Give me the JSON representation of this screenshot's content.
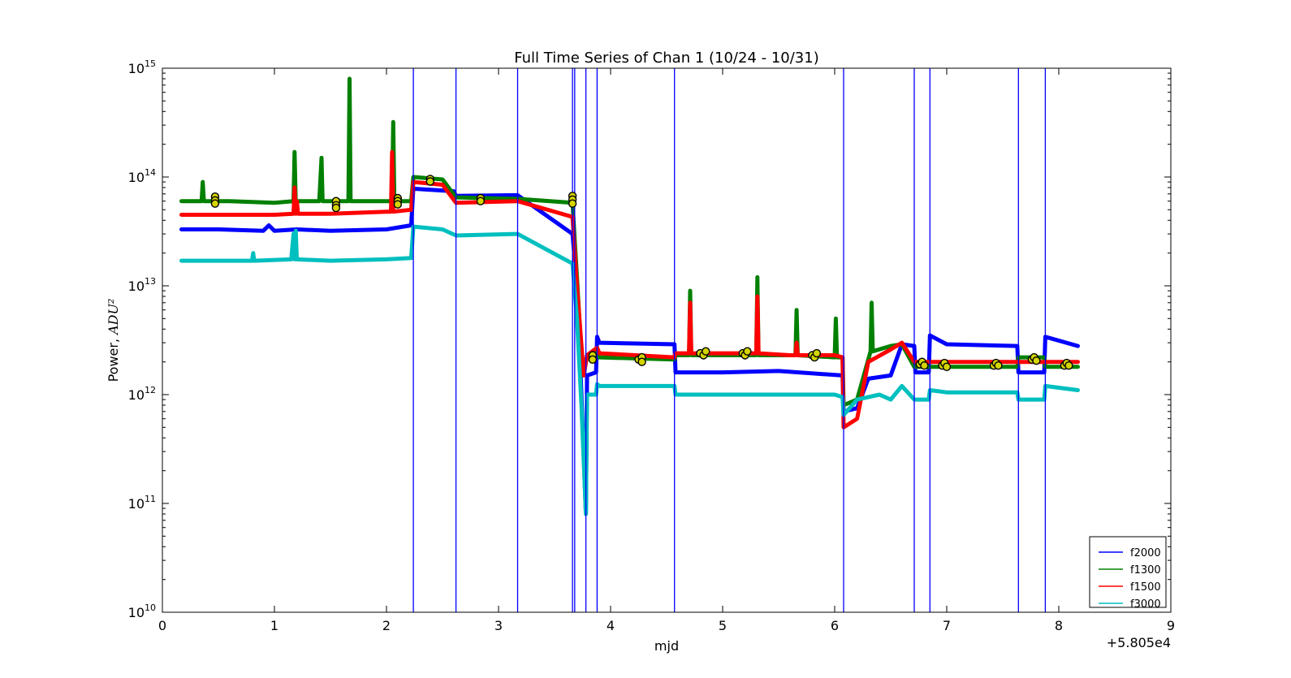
{
  "chart_data": {
    "type": "line",
    "title": "Full Time Series of Chan 1 (10/24 - 10/31)",
    "xlabel": "mjd",
    "ylabel_prefix": "Power, ",
    "ylabel_unit": "ADU²",
    "x_offset_label": "+5.805e4",
    "xlim": [
      0,
      9
    ],
    "yscale": "log",
    "ylim": [
      10000000000.0,
      1000000000000000.0
    ],
    "x_ticks": [
      0,
      1,
      2,
      3,
      4,
      5,
      6,
      7,
      8,
      9
    ],
    "x_tick_labels": [
      "0",
      "1",
      "2",
      "3",
      "4",
      "5",
      "6",
      "7",
      "8",
      "9"
    ],
    "y_ticks": [
      10000000000.0,
      100000000000.0,
      1000000000000.0,
      10000000000000.0,
      100000000000000.0,
      1000000000000000.0
    ],
    "y_tick_bases": [
      "10",
      "10",
      "10",
      "10",
      "10",
      "10"
    ],
    "y_tick_exponents": [
      "10",
      "11",
      "12",
      "13",
      "14",
      "15"
    ],
    "grid": false,
    "legend_position": "lower-right",
    "vertical_lines": [
      2.24,
      2.62,
      3.17,
      3.66,
      3.68,
      3.78,
      3.88,
      4.57,
      6.08,
      6.71,
      6.85,
      7.64,
      7.88
    ],
    "vertical_line_color": "#0000ff",
    "series": [
      {
        "name": "f2000",
        "color": "#0000ff",
        "x": [
          0.17,
          0.5,
          0.9,
          0.95,
          1.0,
          1.2,
          1.5,
          2.0,
          2.22,
          2.24,
          2.25,
          2.6,
          2.62,
          3.17,
          3.66,
          3.7,
          3.74,
          3.78,
          3.79,
          3.87,
          3.88,
          3.9,
          4.57,
          4.58,
          5.0,
          5.5,
          6.07,
          6.08,
          6.2,
          6.3,
          6.5,
          6.6,
          6.71,
          6.72,
          6.84,
          6.85,
          7.0,
          7.63,
          7.64,
          7.87,
          7.88,
          8.17
        ],
        "y": [
          33000000000000.0,
          33000000000000.0,
          32000000000000.0,
          36000000000000.0,
          32000000000000.0,
          33000000000000.0,
          32000000000000.0,
          33000000000000.0,
          36000000000000.0,
          80000000000000.0,
          78000000000000.0,
          74000000000000.0,
          67000000000000.0,
          68000000000000.0,
          30000000000000.0,
          10000000000000.0,
          1000000000000.0,
          80000000000.0,
          1500000000000.0,
          1600000000000.0,
          3400000000000.0,
          3000000000000.0,
          2900000000000.0,
          1600000000000.0,
          1600000000000.0,
          1650000000000.0,
          1500000000000.0,
          700000000000.0,
          750000000000.0,
          1400000000000.0,
          1500000000000.0,
          2900000000000.0,
          2800000000000.0,
          1600000000000.0,
          1600000000000.0,
          3500000000000.0,
          2900000000000.0,
          2800000000000.0,
          1600000000000.0,
          1600000000000.0,
          3400000000000.0,
          2800000000000.0
        ]
      },
      {
        "name": "f1300",
        "color": "#008000",
        "x": [
          0.17,
          0.35,
          0.36,
          0.37,
          0.6,
          1.0,
          1.17,
          1.18,
          1.19,
          1.4,
          1.42,
          1.43,
          1.66,
          1.67,
          1.68,
          2.0,
          2.05,
          2.06,
          2.07,
          2.22,
          2.24,
          2.5,
          2.62,
          3.17,
          3.66,
          3.7,
          3.75,
          3.79,
          3.88,
          3.9,
          4.57,
          4.58,
          4.7,
          4.71,
          4.72,
          5.0,
          5.3,
          5.31,
          5.32,
          5.5,
          5.65,
          5.66,
          5.67,
          6.0,
          6.01,
          6.02,
          6.07,
          6.08,
          6.2,
          6.32,
          6.33,
          6.34,
          6.5,
          6.6,
          6.71,
          6.72,
          7.0,
          7.63,
          7.64,
          7.87,
          7.88,
          8.17
        ],
        "y": [
          60000000000000.0,
          60000000000000.0,
          90000000000000.0,
          60000000000000.0,
          60000000000000.0,
          58000000000000.0,
          60000000000000.0,
          170000000000000.0,
          60000000000000.0,
          60000000000000.0,
          150000000000000.0,
          60000000000000.0,
          60000000000000.0,
          800000000000000.0,
          60000000000000.0,
          60000000000000.0,
          60000000000000.0,
          320000000000000.0,
          60000000000000.0,
          60000000000000.0,
          100000000000000.0,
          95000000000000.0,
          65000000000000.0,
          63000000000000.0,
          58000000000000.0,
          12000000000000.0,
          1500000000000.0,
          2200000000000.0,
          2500000000000.0,
          2200000000000.0,
          2100000000000.0,
          2300000000000.0,
          2300000000000.0,
          9000000000000.0,
          2300000000000.0,
          2300000000000.0,
          2300000000000.0,
          12000000000000.0,
          2300000000000.0,
          2300000000000.0,
          2300000000000.0,
          6000000000000.0,
          2300000000000.0,
          2200000000000.0,
          5000000000000.0,
          2200000000000.0,
          2200000000000.0,
          800000000000.0,
          900000000000.0,
          2500000000000.0,
          7000000000000.0,
          2500000000000.0,
          2800000000000.0,
          2900000000000.0,
          1800000000000.0,
          1800000000000.0,
          1800000000000.0,
          1800000000000.0,
          2200000000000.0,
          2200000000000.0,
          1800000000000.0,
          1800000000000.0
        ]
      },
      {
        "name": "f1500",
        "color": "#ff0000",
        "x": [
          0.17,
          0.5,
          1.0,
          1.17,
          1.18,
          1.19,
          1.2,
          1.21,
          1.5,
          2.0,
          2.04,
          2.05,
          2.06,
          2.22,
          2.24,
          2.5,
          2.62,
          3.17,
          3.66,
          3.7,
          3.76,
          3.79,
          3.88,
          3.9,
          4.57,
          4.58,
          4.7,
          4.71,
          4.72,
          5.0,
          5.3,
          5.31,
          5.32,
          5.6,
          5.65,
          5.66,
          5.67,
          6.0,
          6.07,
          6.08,
          6.2,
          6.3,
          6.5,
          6.6,
          6.71,
          6.72,
          7.0,
          7.63,
          7.64,
          7.87,
          7.88,
          8.17
        ],
        "y": [
          45000000000000.0,
          45000000000000.0,
          45000000000000.0,
          46000000000000.0,
          80000000000000.0,
          46000000000000.0,
          60000000000000.0,
          46000000000000.0,
          46000000000000.0,
          48000000000000.0,
          48000000000000.0,
          170000000000000.0,
          48000000000000.0,
          50000000000000.0,
          90000000000000.0,
          85000000000000.0,
          58000000000000.0,
          60000000000000.0,
          43000000000000.0,
          10000000000000.0,
          1500000000000.0,
          2300000000000.0,
          2700000000000.0,
          2400000000000.0,
          2200000000000.0,
          2400000000000.0,
          2400000000000.0,
          7000000000000.0,
          2400000000000.0,
          2400000000000.0,
          2400000000000.0,
          8000000000000.0,
          2400000000000.0,
          2300000000000.0,
          2300000000000.0,
          3000000000000.0,
          2300000000000.0,
          2300000000000.0,
          2200000000000.0,
          500000000000.0,
          600000000000.0,
          2000000000000.0,
          2600000000000.0,
          3000000000000.0,
          2000000000000.0,
          2000000000000.0,
          2000000000000.0,
          2000000000000.0,
          2000000000000.0,
          2000000000000.0,
          2000000000000.0,
          2000000000000.0
        ]
      },
      {
        "name": "f3000",
        "color": "#00bfbf",
        "x": [
          0.17,
          0.8,
          0.81,
          0.82,
          1.15,
          1.17,
          1.18,
          1.19,
          1.2,
          1.5,
          2.0,
          2.22,
          2.24,
          2.5,
          2.62,
          3.17,
          3.66,
          3.7,
          3.74,
          3.78,
          3.79,
          3.87,
          3.88,
          3.9,
          4.57,
          4.58,
          5.0,
          5.5,
          6.0,
          6.07,
          6.08,
          6.2,
          6.4,
          6.5,
          6.6,
          6.71,
          6.72,
          6.84,
          6.85,
          7.0,
          7.63,
          7.64,
          7.87,
          7.88,
          8.17
        ],
        "y": [
          17000000000000.0,
          17000000000000.0,
          20000000000000.0,
          17000000000000.0,
          17500000000000.0,
          30000000000000.0,
          17500000000000.0,
          32000000000000.0,
          17500000000000.0,
          17000000000000.0,
          17500000000000.0,
          18000000000000.0,
          35000000000000.0,
          33000000000000.0,
          29000000000000.0,
          30000000000000.0,
          16000000000000.0,
          5000000000000.0,
          800000000000.0,
          80000000000.0,
          1000000000000.0,
          1000000000000.0,
          1250000000000.0,
          1200000000000.0,
          1200000000000.0,
          1000000000000.0,
          1000000000000.0,
          1000000000000.0,
          1000000000000.0,
          950000000000.0,
          650000000000.0,
          900000000000.0,
          1000000000000.0,
          900000000000.0,
          1200000000000.0,
          900000000000.0,
          900000000000.0,
          900000000000.0,
          1100000000000.0,
          1050000000000.0,
          1050000000000.0,
          900000000000.0,
          900000000000.0,
          1200000000000.0,
          1100000000000.0
        ]
      }
    ],
    "markers": {
      "face_color": "#d4d400",
      "edge_color": "#000000",
      "points": [
        [
          0.47,
          66000000000000.0
        ],
        [
          0.47,
          61000000000000.0
        ],
        [
          0.47,
          57000000000000.0
        ],
        [
          1.55,
          60000000000000.0
        ],
        [
          1.55,
          55000000000000.0
        ],
        [
          1.55,
          52000000000000.0
        ],
        [
          2.1,
          64000000000000.0
        ],
        [
          2.1,
          60000000000000.0
        ],
        [
          2.1,
          56000000000000.0
        ],
        [
          2.39,
          96000000000000.0
        ],
        [
          2.39,
          91000000000000.0
        ],
        [
          2.84,
          64000000000000.0
        ],
        [
          2.84,
          60000000000000.0
        ],
        [
          3.66,
          67000000000000.0
        ],
        [
          3.66,
          62000000000000.0
        ],
        [
          3.66,
          57000000000000.0
        ],
        [
          3.84,
          2300000000000.0
        ],
        [
          3.84,
          2100000000000.0
        ],
        [
          4.25,
          2100000000000.0
        ],
        [
          4.28,
          2200000000000.0
        ],
        [
          4.28,
          2000000000000.0
        ],
        [
          4.8,
          2400000000000.0
        ],
        [
          4.83,
          2300000000000.0
        ],
        [
          4.85,
          2500000000000.0
        ],
        [
          5.18,
          2400000000000.0
        ],
        [
          5.2,
          2300000000000.0
        ],
        [
          5.22,
          2500000000000.0
        ],
        [
          5.8,
          2300000000000.0
        ],
        [
          5.82,
          2200000000000.0
        ],
        [
          5.84,
          2400000000000.0
        ],
        [
          6.76,
          1900000000000.0
        ],
        [
          6.78,
          2000000000000.0
        ],
        [
          6.8,
          1850000000000.0
        ],
        [
          6.96,
          1850000000000.0
        ],
        [
          6.98,
          1950000000000.0
        ],
        [
          7.0,
          1800000000000.0
        ],
        [
          7.42,
          1850000000000.0
        ],
        [
          7.44,
          1950000000000.0
        ],
        [
          7.46,
          1850000000000.0
        ],
        [
          7.76,
          2100000000000.0
        ],
        [
          7.78,
          2200000000000.0
        ],
        [
          7.8,
          2050000000000.0
        ],
        [
          8.05,
          1850000000000.0
        ],
        [
          8.07,
          1950000000000.0
        ],
        [
          8.09,
          1850000000000.0
        ]
      ]
    }
  }
}
